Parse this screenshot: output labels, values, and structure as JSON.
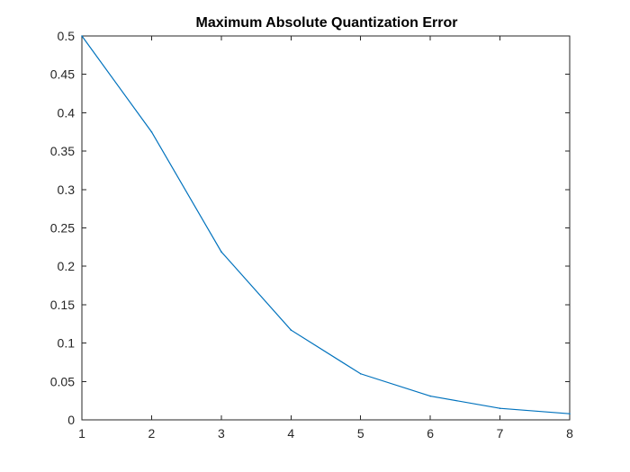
{
  "chart_data": {
    "type": "line",
    "title": "Maximum Absolute Quantization Error",
    "xlabel": "",
    "ylabel": "",
    "xlim": [
      1,
      8
    ],
    "ylim": [
      0,
      0.5
    ],
    "x_ticks": [
      1,
      2,
      3,
      4,
      5,
      6,
      7,
      8
    ],
    "y_ticks": [
      0,
      0.05,
      0.1,
      0.15,
      0.2,
      0.25,
      0.3,
      0.35,
      0.4,
      0.45,
      0.5
    ],
    "x_tick_labels": [
      "1",
      "2",
      "3",
      "4",
      "5",
      "6",
      "7",
      "8"
    ],
    "y_tick_labels": [
      "0",
      "0.05",
      "0.1",
      "0.15",
      "0.2",
      "0.25",
      "0.3",
      "0.35",
      "0.4",
      "0.45",
      "0.5"
    ],
    "grid": false,
    "series": [
      {
        "color": "#0072bd",
        "x": [
          1,
          2,
          3,
          4,
          5,
          6,
          7,
          8
        ],
        "values": [
          0.5,
          0.375,
          0.219,
          0.117,
          0.06,
          0.031,
          0.015,
          0.008
        ]
      }
    ]
  }
}
